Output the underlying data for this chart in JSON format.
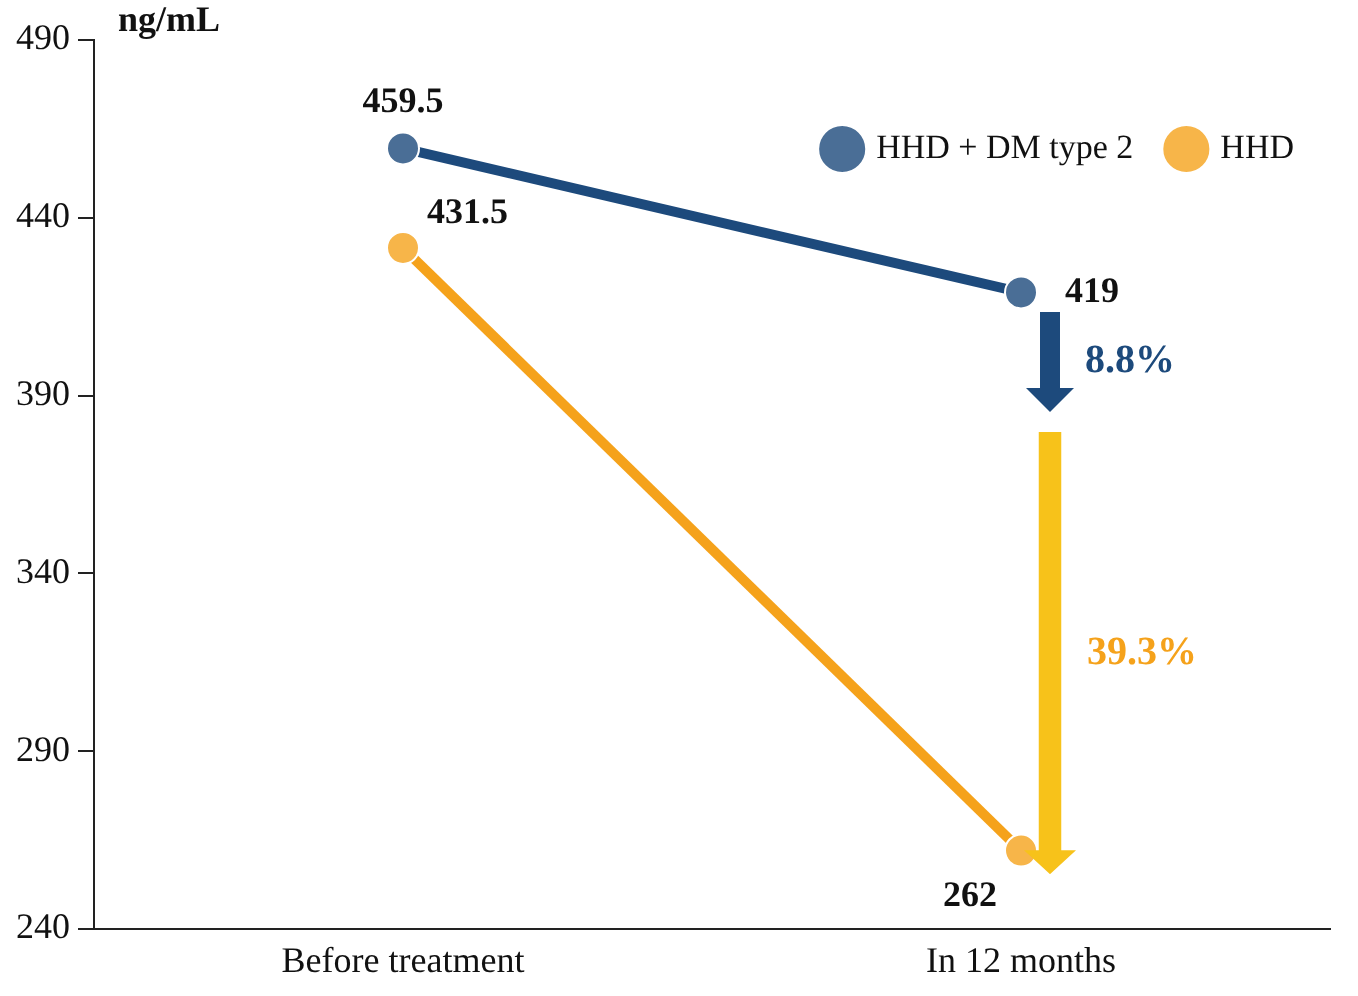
{
  "chart_data": {
    "type": "line",
    "ylabel": "ng/mL",
    "categories": [
      "Before treatment",
      "In 12 months"
    ],
    "series": [
      {
        "name": "HHD + DM type 2",
        "color": "#1d4a7c",
        "values": [
          459.5,
          419
        ]
      },
      {
        "name": "HHD",
        "color": "#f5a21b",
        "values": [
          431.5,
          262
        ]
      }
    ],
    "ylim": [
      240,
      490
    ],
    "yticks": [
      240,
      290,
      340,
      390,
      440,
      490
    ],
    "grid": false,
    "legend": "top right",
    "marker": "circle",
    "line_style": "solid",
    "data_labels": true,
    "annotations": [
      "8.8%",
      "39.3%"
    ]
  }
}
